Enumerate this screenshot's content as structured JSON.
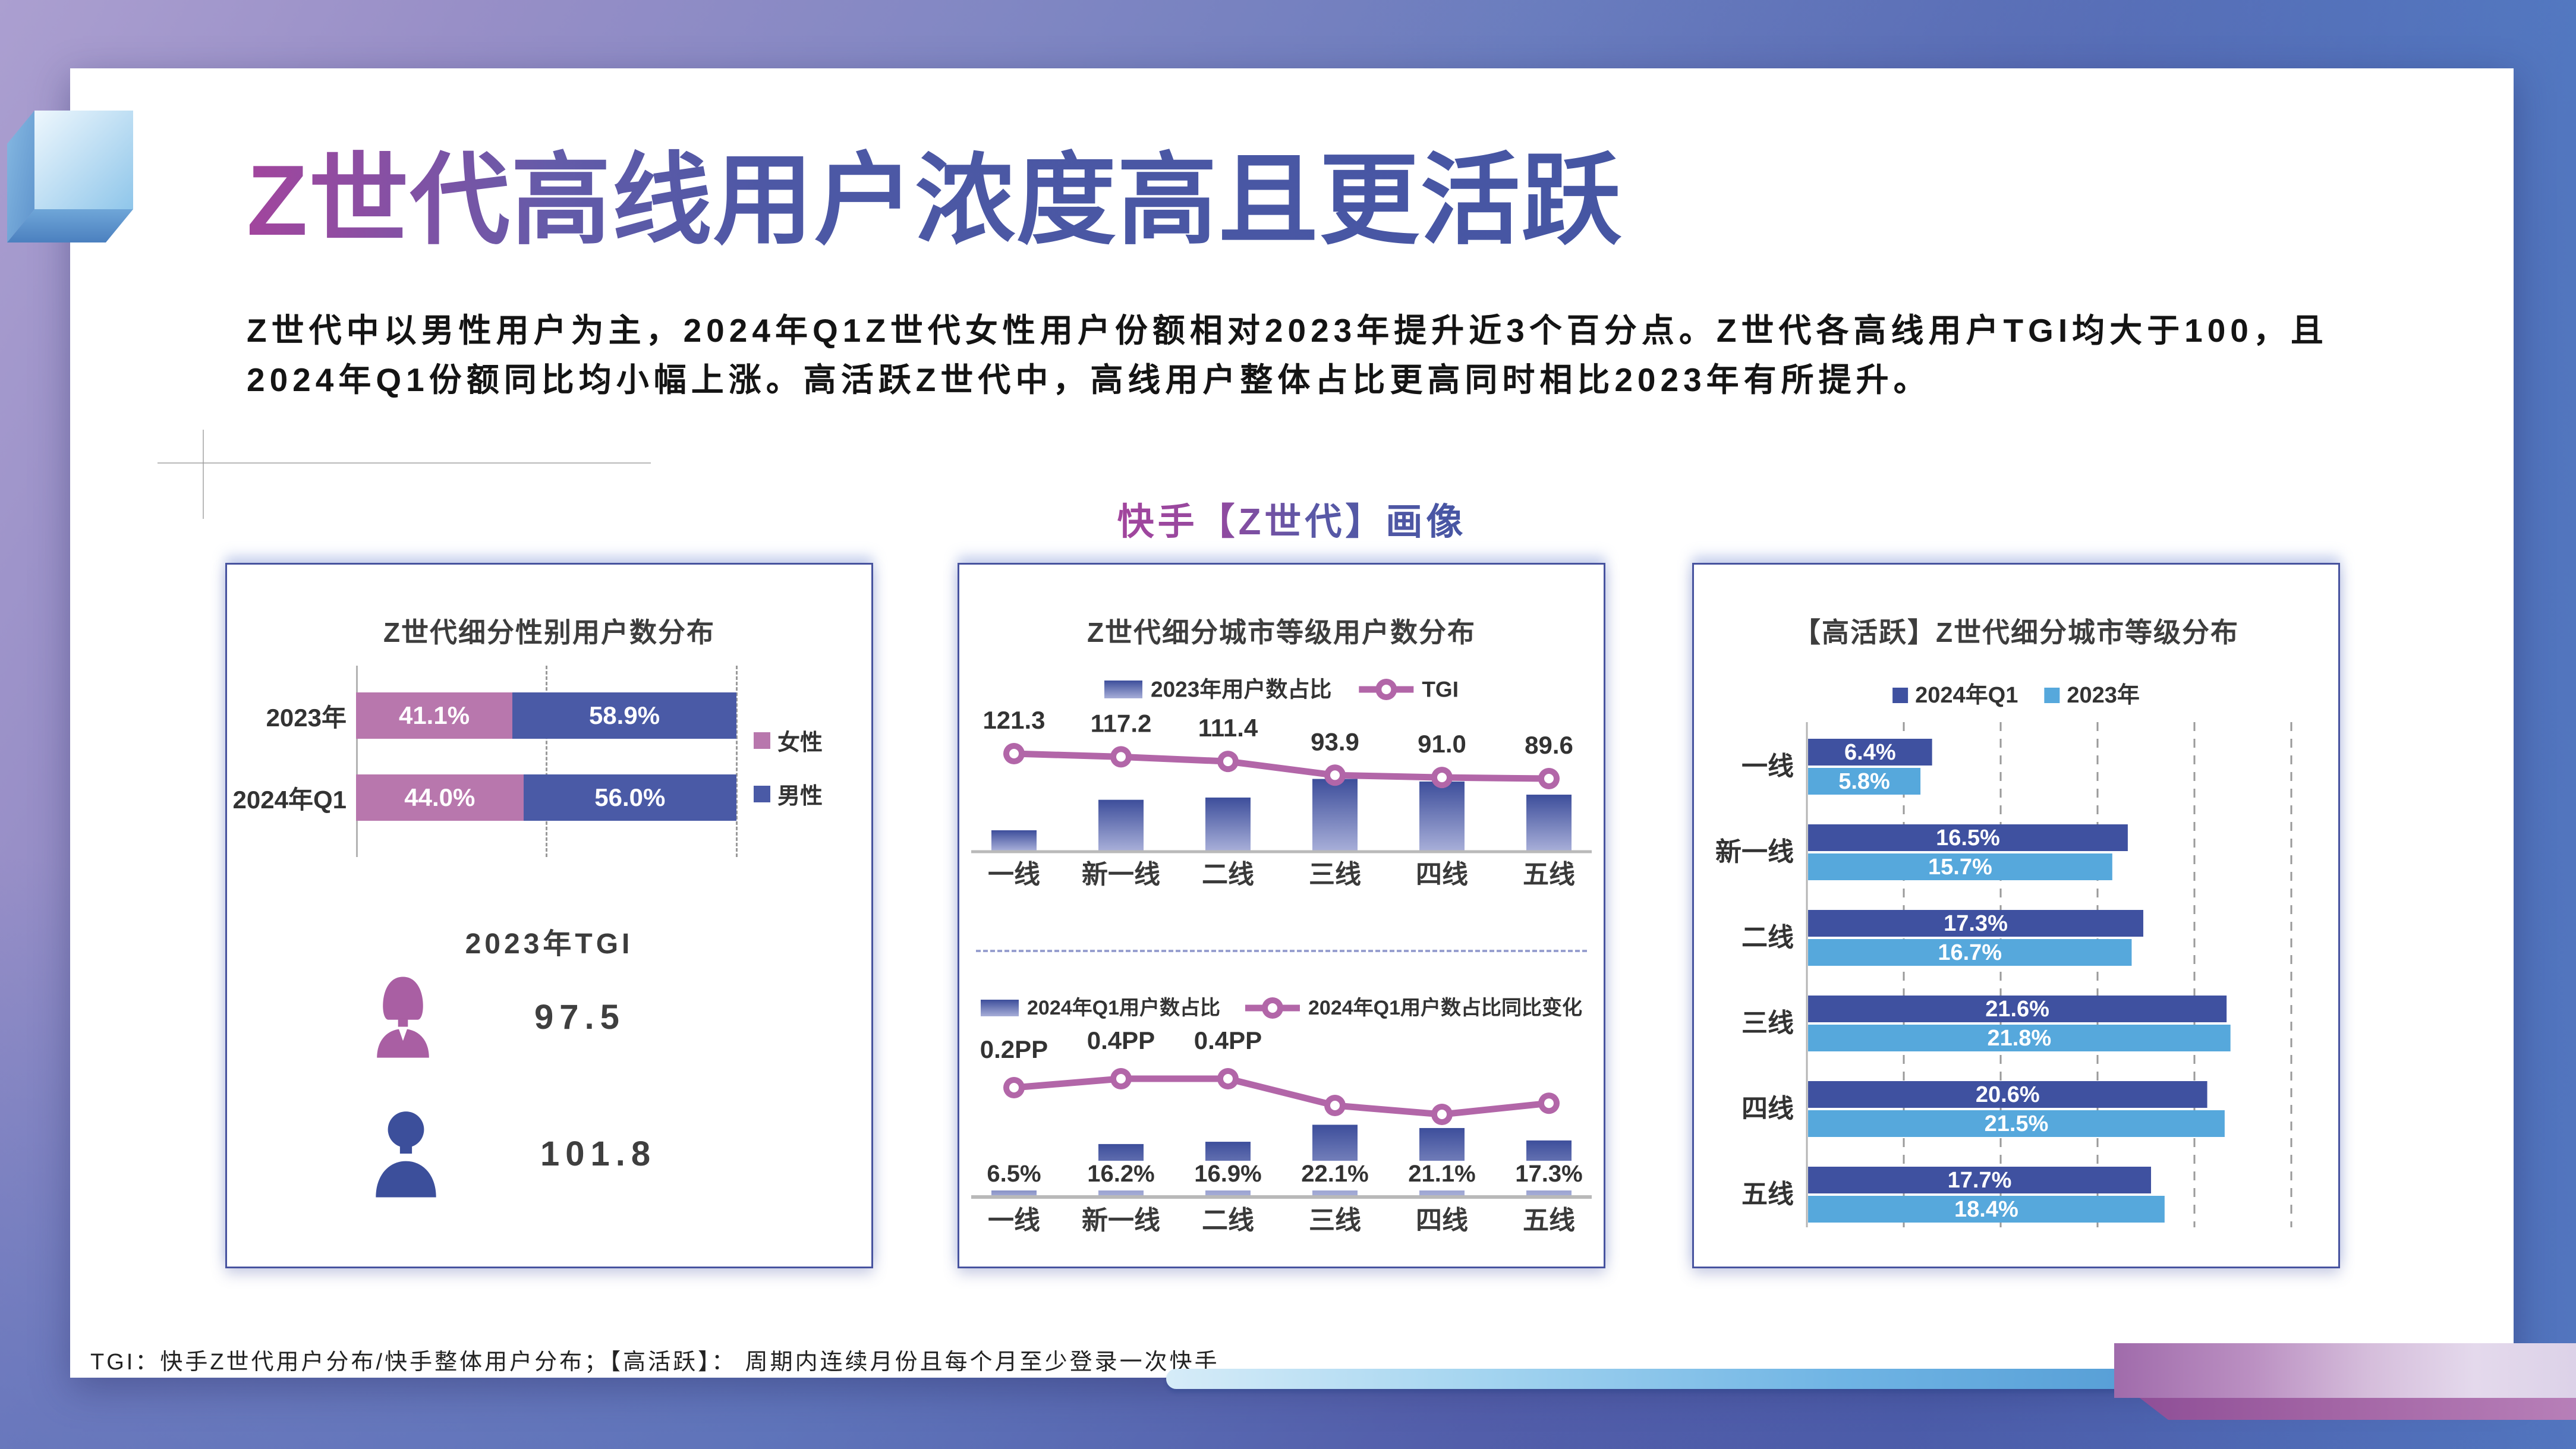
{
  "page": {
    "title": "Z世代高线用户浓度高且更活跃",
    "intro": "Z世代中以男性用户为主，2024年Q1Z世代女性用户份额相对2023年提升近3个百分点。Z世代各高线用户TGI均大于100，且2024年Q1份额同比均小幅上涨。高活跃Z世代中，高线用户整体占比更高同时相比2023年有所提升。",
    "subtitle": "快手【Z世代】画像",
    "footer": "TGI：快手Z世代用户分布/快手整体用户分布；【高活跃】： 周期内连续月份且每个月至少登录一次快手"
  },
  "colors": {
    "female_pink": "#b877ad",
    "male_blue": "#4a5aa6",
    "bar_gradient_top": "#3d4e9b",
    "bar_gradient_bottom": "#a7aed8",
    "line_pink": "#b266a8",
    "blue_2024": "#3f51a0",
    "blue_2023": "#56a8dc",
    "panel_border": "#47539f",
    "title_gradient_start": "#a2459d",
    "title_gradient_end": "#4656a3"
  },
  "icons": {
    "female": "female-user-icon",
    "male": "male-user-icon",
    "cube": "cube-decoration"
  },
  "panels": {
    "gender": {
      "title": "Z世代细分性别用户数分布",
      "legend": {
        "female": "女性",
        "male": "男性"
      },
      "rows": [
        {
          "label": "2023年",
          "female": 41.1,
          "female_label": "41.1%",
          "male": 58.9,
          "male_label": "58.9%"
        },
        {
          "label": "2024年Q1",
          "female": 44.0,
          "female_label": "44.0%",
          "male": 56.0,
          "male_label": "56.0%"
        }
      ],
      "tgi": {
        "heading": "2023年TGI",
        "female_value": "97.5",
        "male_value": "101.8"
      }
    },
    "city": {
      "title": "Z世代细分城市等级用户数分布",
      "categories": [
        "一线",
        "新一线",
        "二线",
        "三线",
        "四线",
        "五线"
      ],
      "top": {
        "legend_bar": "2023年用户数占比",
        "legend_line": "TGI",
        "tgi_values": [
          121.3,
          117.2,
          111.4,
          93.9,
          91.0,
          89.6
        ],
        "tgi_labels": [
          "121.3",
          "117.2",
          "111.4",
          "93.9",
          "91.0",
          "89.6"
        ],
        "bar_values_est": [
          6.3,
          15.8,
          16.5,
          22.3,
          21.5,
          17.4
        ]
      },
      "bottom": {
        "legend_bar": "2024年Q1用户数占比",
        "legend_line": "2024年Q1用户数占比同比变化",
        "bar_values": [
          6.5,
          16.2,
          16.9,
          22.1,
          21.1,
          17.3
        ],
        "bar_labels": [
          "6.5%",
          "16.2%",
          "16.9%",
          "22.1%",
          "21.1%",
          "17.3%"
        ],
        "pp_values_est": [
          0.2,
          0.4,
          0.4,
          -0.2,
          -0.4,
          -0.15
        ],
        "pp_labels": [
          "0.2PP",
          "0.4PP",
          "0.4PP",
          "",
          "",
          ""
        ]
      }
    },
    "active": {
      "title": "【高活跃】Z世代细分城市等级分布",
      "legend_2024": "2024年Q1",
      "legend_2023": "2023年",
      "categories": [
        "一线",
        "新一线",
        "二线",
        "三线",
        "四线",
        "五线"
      ],
      "values_2024": [
        6.4,
        16.5,
        17.3,
        21.6,
        20.6,
        17.7
      ],
      "labels_2024": [
        "6.4%",
        "16.5%",
        "17.3%",
        "21.6%",
        "20.6%",
        "17.7%"
      ],
      "values_2023": [
        5.8,
        15.7,
        16.7,
        21.8,
        21.5,
        18.4
      ],
      "labels_2023": [
        "5.8%",
        "15.7%",
        "16.7%",
        "21.8%",
        "21.5%",
        "18.4%"
      ],
      "axis_max": 25,
      "axis_step": 5
    }
  },
  "chart_data": [
    {
      "type": "bar",
      "subtype": "horizontal-stacked",
      "title": "Z世代细分性别用户数分布",
      "categories": [
        "2023年",
        "2024年Q1"
      ],
      "series": [
        {
          "name": "女性",
          "values": [
            41.1,
            44.0
          ]
        },
        {
          "name": "男性",
          "values": [
            58.9,
            56.0
          ]
        }
      ],
      "unit": "%",
      "xlim": [
        0,
        100
      ],
      "grid": "dashed vertical at 50 and 100",
      "legend_position": "right",
      "extra": {
        "heading": "2023年TGI",
        "female_tgi": 97.5,
        "male_tgi": 101.8
      }
    },
    {
      "type": "bar",
      "subtype": "vertical-bars-with-line",
      "title": "Z世代细分城市等级用户数分布",
      "categories": [
        "一线",
        "新一线",
        "二线",
        "三线",
        "四线",
        "五线"
      ],
      "series": [
        {
          "name": "2023年用户数占比",
          "type": "bar",
          "values": [
            6.3,
            15.8,
            16.5,
            22.3,
            21.5,
            17.4
          ],
          "estimated": true
        },
        {
          "name": "TGI",
          "type": "line",
          "values": [
            121.3,
            117.2,
            111.4,
            93.9,
            91.0,
            89.6
          ]
        },
        {
          "name": "2024年Q1用户数占比",
          "type": "bar",
          "values": [
            6.5,
            16.2,
            16.9,
            22.1,
            21.1,
            17.3
          ]
        },
        {
          "name": "2024年Q1用户数占比同比变化",
          "type": "line",
          "unit": "PP",
          "values": [
            0.2,
            0.4,
            0.4,
            -0.2,
            -0.4,
            -0.15
          ],
          "labeled_only_first_three": true
        }
      ],
      "legend_position": "top",
      "grid": "off"
    },
    {
      "type": "bar",
      "subtype": "horizontal-grouped",
      "title": "【高活跃】Z世代细分城市等级分布",
      "categories": [
        "一线",
        "新一线",
        "二线",
        "三线",
        "四线",
        "五线"
      ],
      "series": [
        {
          "name": "2024年Q1",
          "values": [
            6.4,
            16.5,
            17.3,
            21.6,
            20.6,
            17.7
          ]
        },
        {
          "name": "2023年",
          "values": [
            5.8,
            15.7,
            16.7,
            21.8,
            21.5,
            18.4
          ]
        }
      ],
      "unit": "%",
      "xlim": [
        0,
        25
      ],
      "grid": "dashed vertical every 5",
      "legend_position": "top"
    }
  ]
}
